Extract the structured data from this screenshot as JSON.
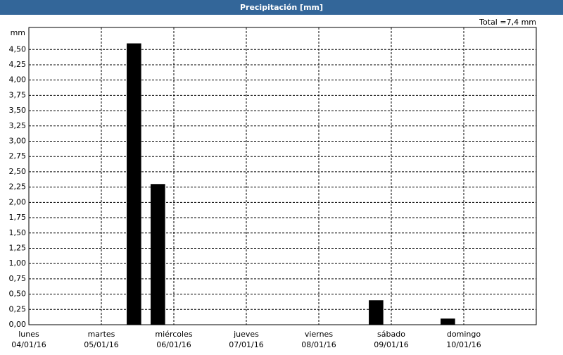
{
  "chart_data": {
    "type": "bar",
    "title": "Precipitación [mm]",
    "y_label": "mm",
    "annotation": "Total =7,4 mm",
    "x": [
      1.45,
      1.78,
      4.79,
      5.78
    ],
    "values": [
      4.6,
      2.3,
      0.4,
      0.1
    ],
    "color": "#000000",
    "bar_width": 0.2,
    "xlim": [
      0,
      7
    ],
    "xticks": [
      {
        "value": 0,
        "label": [
          "lunes",
          "04/01/16"
        ]
      },
      {
        "value": 1,
        "label": [
          "martes",
          "05/01/16"
        ]
      },
      {
        "value": 2,
        "label": [
          "miércoles",
          "06/01/16"
        ]
      },
      {
        "value": 3,
        "label": [
          "jueves",
          "07/01/16"
        ]
      },
      {
        "value": 4,
        "label": [
          "viernes",
          "08/01/16"
        ]
      },
      {
        "value": 5,
        "label": [
          "sábado",
          "09/01/16"
        ]
      },
      {
        "value": 6,
        "label": [
          "domingo",
          "10/01/16"
        ]
      }
    ],
    "ylim": [
      0,
      4.86
    ],
    "yticks": [
      {
        "value": 0,
        "label": "0,00"
      },
      {
        "value": 0.25,
        "label": "0,25"
      },
      {
        "value": 0.5,
        "label": "0,50"
      },
      {
        "value": 0.75,
        "label": "0,75"
      },
      {
        "value": 1,
        "label": "1,00"
      },
      {
        "value": 1.25,
        "label": "1,25"
      },
      {
        "value": 1.5,
        "label": "1,50"
      },
      {
        "value": 1.75,
        "label": "1,75"
      },
      {
        "value": 2,
        "label": "2,00"
      },
      {
        "value": 2.25,
        "label": "2,25"
      },
      {
        "value": 2.5,
        "label": "2,50"
      },
      {
        "value": 2.75,
        "label": "2,75"
      },
      {
        "value": 3,
        "label": "3,00"
      },
      {
        "value": 3.25,
        "label": "3,25"
      },
      {
        "value": 3.5,
        "label": "3,50"
      },
      {
        "value": 3.75,
        "label": "3,75"
      },
      {
        "value": 4,
        "label": "4,00"
      },
      {
        "value": 4.25,
        "label": "4,25"
      },
      {
        "value": 4.5,
        "label": "4,50"
      }
    ],
    "grid": true
  }
}
